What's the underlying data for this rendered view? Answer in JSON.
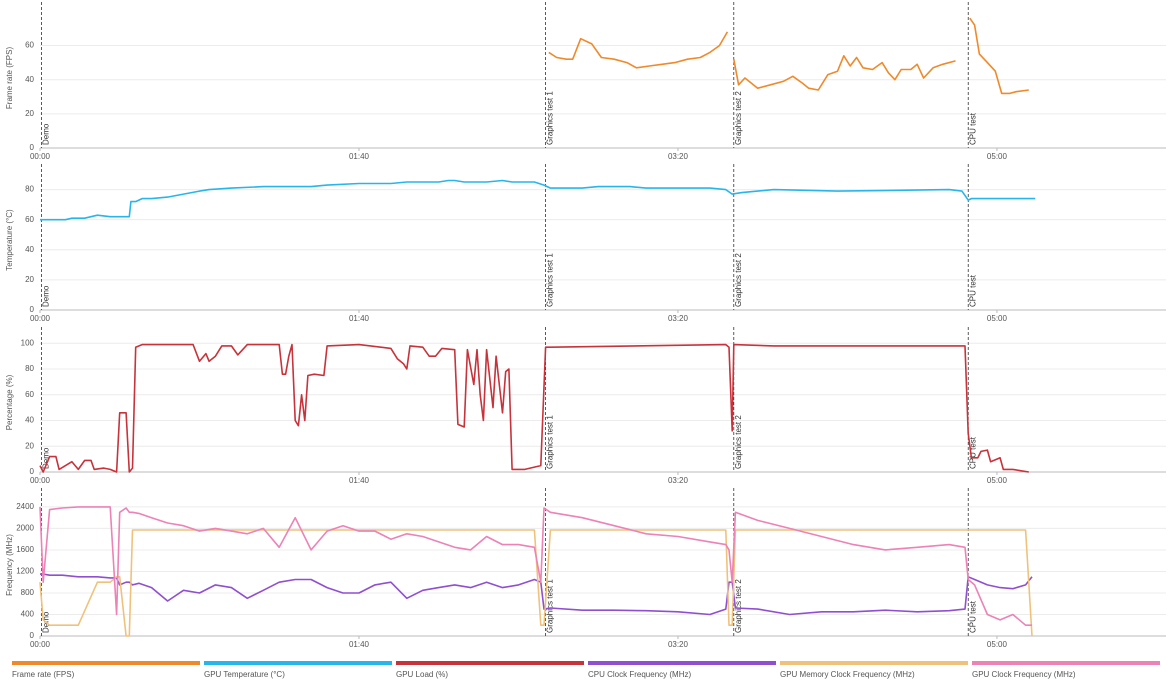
{
  "chart_data": [
    {
      "type": "line",
      "ylabel": "Frame rate (FPS)",
      "grid": true,
      "xlim": [
        0,
        353
      ],
      "xticks": [
        {
          "value": 0,
          "label": "00:00"
        },
        {
          "value": 100,
          "label": "01:40"
        },
        {
          "value": 200,
          "label": "03:20"
        },
        {
          "value": 300,
          "label": "05:00"
        }
      ],
      "ylim": [
        0,
        82
      ],
      "yticks": [
        0,
        20,
        40,
        60
      ],
      "markers": [
        {
          "x": 0.5,
          "label": "Demo"
        },
        {
          "x": 158.5,
          "label": "Graphics test 1"
        },
        {
          "x": 217.5,
          "label": "Graphics test 2"
        },
        {
          "x": 291,
          "label": "CPU test"
        }
      ],
      "x": [
        159.5,
        162,
        165,
        167,
        169.5,
        173,
        176,
        180,
        184,
        187,
        191,
        195,
        199,
        203,
        207,
        210,
        213,
        215.5,
        216,
        217.5,
        219,
        221,
        225,
        229,
        233,
        236,
        239,
        241,
        244,
        247,
        250,
        252,
        254,
        256,
        258,
        261,
        264,
        266,
        268,
        270,
        273,
        275,
        277,
        280,
        283,
        287,
        289,
        291.5,
        293,
        294.5,
        297,
        299.5,
        301.5,
        304,
        306,
        310
      ],
      "series": [
        {
          "name": "Frame rate (FPS)",
          "color": "#f0892a",
          "values": [
            56,
            53,
            52,
            52,
            64,
            61,
            53,
            52,
            50,
            47,
            48,
            49,
            50,
            52,
            53,
            56,
            60,
            68,
            null,
            52,
            37,
            41,
            35,
            37,
            39,
            42,
            38,
            35,
            34,
            43,
            45,
            54,
            48,
            53,
            47,
            46,
            50,
            44,
            40,
            46,
            46,
            49,
            41,
            47,
            49,
            51,
            null,
            76,
            72,
            55,
            50,
            45,
            32,
            32,
            33,
            34
          ]
        }
      ]
    },
    {
      "type": "line",
      "ylabel": "Temperature (°C)",
      "grid": true,
      "xlim": [
        0,
        353
      ],
      "xticks": [
        {
          "value": 0,
          "label": "00:00"
        },
        {
          "value": 100,
          "label": "01:40"
        },
        {
          "value": 200,
          "label": "03:20"
        },
        {
          "value": 300,
          "label": "05:00"
        }
      ],
      "ylim": [
        0,
        93
      ],
      "yticks": [
        0,
        20,
        40,
        60,
        80
      ],
      "markers": [
        {
          "x": 0.5,
          "label": "Demo"
        },
        {
          "x": 158.5,
          "label": "Graphics test 1"
        },
        {
          "x": 217.5,
          "label": "Graphics test 2"
        },
        {
          "x": 291,
          "label": "CPU test"
        }
      ],
      "x": [
        0,
        8,
        10,
        14,
        16,
        18,
        22,
        28,
        28.5,
        30,
        32,
        35,
        40,
        45,
        50,
        53,
        60,
        70,
        85,
        90,
        100,
        110,
        115,
        125,
        128,
        130,
        133,
        140,
        145,
        148,
        155,
        158,
        160,
        170,
        175,
        185,
        190,
        210,
        215,
        217,
        220,
        225,
        230,
        250,
        285,
        289,
        291,
        292,
        312
      ],
      "series": [
        {
          "name": "GPU Temperature (°C)",
          "color": "#27b6ec",
          "values": [
            60,
            60,
            61,
            61,
            62,
            63,
            62,
            62,
            72,
            72,
            74,
            74,
            75,
            77,
            79,
            80,
            81,
            82,
            82,
            83,
            84,
            84,
            85,
            85,
            86,
            86,
            85,
            85,
            86,
            85,
            85,
            83,
            81,
            81,
            82,
            82,
            81,
            81,
            80,
            77,
            78,
            79,
            80,
            79,
            80,
            79,
            73,
            74,
            74
          ]
        }
      ]
    },
    {
      "type": "line",
      "ylabel": "Percentage (%)",
      "grid": true,
      "xlim": [
        0,
        353
      ],
      "xticks": [
        {
          "value": 0,
          "label": "00:00"
        },
        {
          "value": 100,
          "label": "01:40"
        },
        {
          "value": 200,
          "label": "03:20"
        },
        {
          "value": 300,
          "label": "05:00"
        }
      ],
      "ylim": [
        0,
        108
      ],
      "yticks": [
        0,
        20,
        40,
        60,
        80,
        100
      ],
      "markers": [
        {
          "x": 0.5,
          "label": "Demo"
        },
        {
          "x": 158.5,
          "label": "Graphics test 1"
        },
        {
          "x": 217.5,
          "label": "Graphics test 2"
        },
        {
          "x": 291,
          "label": "CPU test"
        }
      ],
      "x": [
        0,
        1,
        3,
        5,
        6,
        8,
        10,
        12,
        14,
        16,
        17,
        20,
        22,
        24,
        25,
        27,
        28,
        29,
        30,
        32,
        45,
        48,
        50,
        52,
        53,
        55,
        57,
        60,
        62,
        65,
        75,
        76,
        77,
        78,
        79,
        80,
        81,
        82,
        83,
        84,
        86,
        89,
        90,
        100,
        110,
        112,
        114,
        115,
        116,
        120,
        122,
        124,
        126,
        130,
        131,
        133,
        134,
        136,
        137,
        138,
        139,
        140,
        142,
        143,
        145,
        146,
        147,
        148,
        152,
        157,
        158.5,
        160,
        215,
        216,
        217,
        217.5,
        230,
        260,
        290,
        291,
        292,
        294,
        295,
        297,
        298,
        300,
        301,
        302,
        305,
        310
      ],
      "series": [
        {
          "name": "GPU Load (%)",
          "color": "#c8323a",
          "values": [
            5,
            0,
            12,
            12,
            2,
            5,
            8,
            2,
            9,
            9,
            2,
            3,
            2,
            0,
            46,
            46,
            0,
            3,
            97,
            99,
            99,
            99,
            86,
            92,
            86,
            90,
            98,
            98,
            91,
            99,
            99,
            76,
            76,
            90,
            99,
            40,
            36,
            60,
            40,
            75,
            76,
            75,
            98,
            99,
            96,
            88,
            84,
            80,
            98,
            97,
            90,
            90,
            96,
            95,
            37,
            35,
            95,
            68,
            95,
            60,
            40,
            95,
            50,
            90,
            46,
            78,
            80,
            2,
            2,
            5,
            97,
            97,
            99,
            97,
            32,
            99,
            98,
            98,
            98,
            30,
            11,
            11,
            16,
            17,
            8,
            10,
            11,
            2,
            2,
            0
          ]
        }
      ]
    },
    {
      "type": "line",
      "ylabel": "Frequency (MHz)",
      "grid": true,
      "xlim": [
        0,
        353
      ],
      "xticks": [
        {
          "value": 0,
          "label": "00:00"
        },
        {
          "value": 100,
          "label": "01:40"
        },
        {
          "value": 200,
          "label": "03:20"
        },
        {
          "value": 300,
          "label": "05:00"
        }
      ],
      "ylim": [
        0,
        2640
      ],
      "yticks": [
        0,
        400,
        800,
        1200,
        1600,
        2000,
        2400
      ],
      "markers": [
        {
          "x": 0.5,
          "label": "Demo"
        },
        {
          "x": 158.5,
          "label": "Graphics test 1"
        },
        {
          "x": 217.5,
          "label": "Graphics test 2"
        },
        {
          "x": 291,
          "label": "CPU test"
        }
      ],
      "x": [
        0,
        1,
        3,
        7,
        12,
        18,
        22,
        24,
        25,
        27,
        28,
        29,
        31,
        35,
        40,
        45,
        50,
        55,
        60,
        65,
        70,
        75,
        80,
        85,
        90,
        95,
        100,
        105,
        110,
        115,
        120,
        125,
        130,
        135,
        140,
        145,
        150,
        155,
        157,
        158,
        160,
        170,
        180,
        190,
        200,
        210,
        215,
        216,
        217,
        218,
        225,
        235,
        245,
        255,
        265,
        275,
        285,
        290,
        291,
        293,
        297,
        301,
        305,
        309,
        311
      ],
      "series": [
        {
          "name": "CPU Clock Frequency (MHz)",
          "color": "#8f4fd0",
          "values": [
            1150,
            1150,
            1130,
            1130,
            1100,
            1100,
            1080,
            1080,
            950,
            1000,
            1000,
            950,
            980,
            900,
            650,
            850,
            800,
            950,
            900,
            700,
            850,
            1000,
            1050,
            1050,
            900,
            800,
            800,
            950,
            1000,
            700,
            850,
            900,
            950,
            900,
            1000,
            900,
            950,
            1050,
            1000,
            500,
            520,
            480,
            480,
            470,
            450,
            400,
            500,
            1000,
            1000,
            520,
            500,
            400,
            450,
            450,
            480,
            450,
            470,
            500,
            1100,
            1050,
            950,
            900,
            880,
            950,
            1100
          ]
        },
        {
          "name": "GPU Memory Clock Frequency (MHz)",
          "color": "#efc27c",
          "values": [
            1000,
            300,
            200,
            200,
            200,
            1000,
            1000,
            1100,
            1100,
            0,
            0,
            1970,
            1970,
            1970,
            1970,
            1970,
            1970,
            1970,
            1970,
            1970,
            1970,
            1970,
            1970,
            1970,
            1970,
            1970,
            1970,
            1970,
            1970,
            1970,
            1970,
            1970,
            1970,
            1970,
            1970,
            1970,
            1970,
            1970,
            200,
            200,
            1970,
            1970,
            1970,
            1970,
            1970,
            1970,
            1970,
            200,
            200,
            1970,
            1970,
            1970,
            1970,
            1970,
            1970,
            1970,
            1970,
            1970,
            1970,
            1970,
            1970,
            1970,
            1970,
            1970,
            0
          ]
        },
        {
          "name": "GPU Clock Frequency (MHz)",
          "color": "#ec82b6",
          "values": [
            2400,
            1000,
            2350,
            2380,
            2400,
            2400,
            2400,
            400,
            2300,
            2380,
            2300,
            2300,
            2280,
            2200,
            2100,
            2050,
            1950,
            2000,
            1950,
            1900,
            2000,
            1650,
            2200,
            1600,
            1950,
            2050,
            1950,
            1950,
            1800,
            1900,
            1850,
            1750,
            1650,
            1600,
            1850,
            1700,
            1700,
            1650,
            1000,
            2380,
            2300,
            2200,
            2050,
            1900,
            1850,
            1750,
            1700,
            1600,
            1000,
            2300,
            2150,
            2000,
            1850,
            1700,
            1600,
            1650,
            1700,
            1650,
            1050,
            950,
            400,
            300,
            400,
            200,
            200
          ]
        }
      ]
    }
  ]
}
